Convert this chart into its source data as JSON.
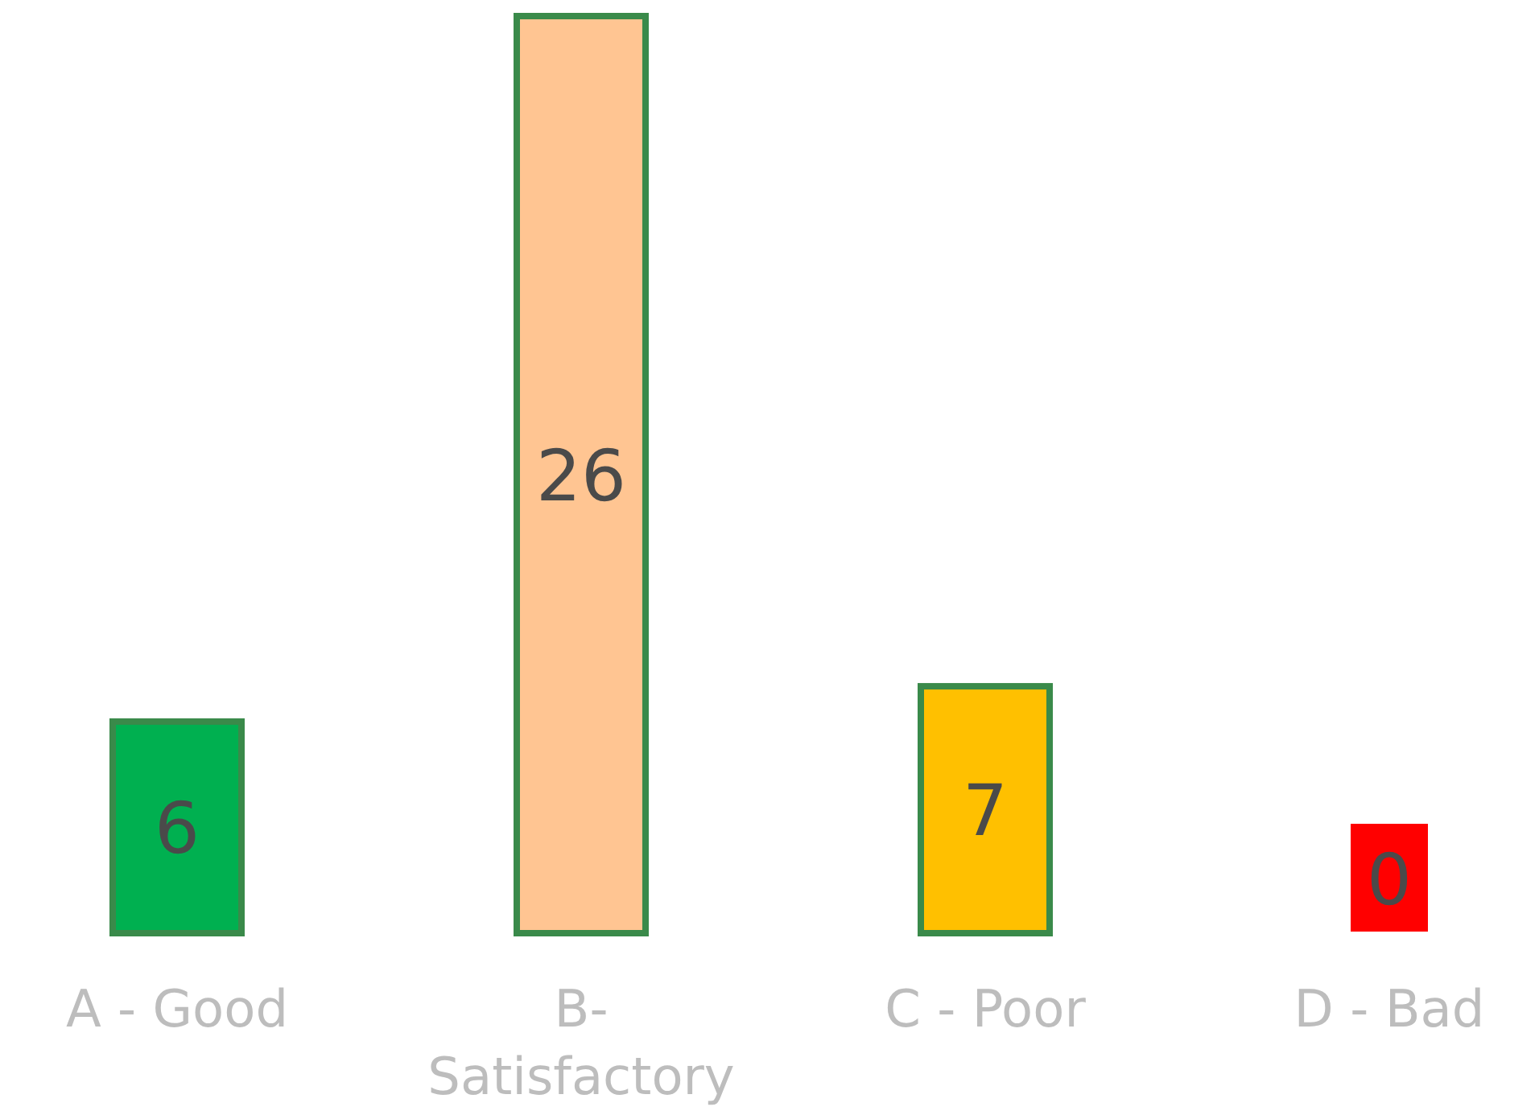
{
  "chart_data": {
    "type": "bar",
    "categories": [
      "A - Good",
      "B- Satisfactory",
      "C - Poor",
      "D - Bad"
    ],
    "values": [
      6,
      26,
      7,
      0
    ],
    "colors": [
      "#00b050",
      "#ffc592",
      "#ffc000",
      "#ff0000"
    ],
    "data_labels": true
  }
}
